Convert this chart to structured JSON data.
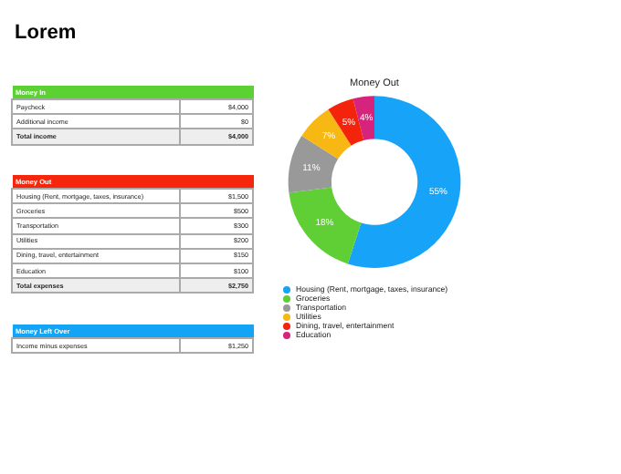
{
  "chart_data": [
    {
      "type": "other",
      "title": "Lorem"
    },
    {
      "type": "other",
      "title": "Money In",
      "colors": [
        "#5cd134"
      ],
      "annotations": [
        "Paycheck",
        "$4,000",
        "Additional income",
        "$0",
        "Total income",
        "$4,000"
      ]
    },
    {
      "type": "other",
      "title": "Money Out",
      "colors": [
        "#f5260c"
      ],
      "annotations": [
        "Housing (Rent, mortgage, taxes, insurance)",
        "$1,500",
        "Groceries",
        "$500",
        "Transportation",
        "$300",
        "Utilities",
        "$200",
        "Dining, travel, entertainment",
        "$150",
        "Education",
        "$100",
        "Total expenses",
        "$2,750"
      ]
    },
    {
      "type": "other",
      "title": "Money Left Over",
      "colors": [
        "#14a4f6"
      ],
      "annotations": [
        "Income minus expenses",
        "$1,250"
      ]
    },
    {
      "type": "donut",
      "title": "Money Out",
      "legend": "bottom",
      "categories": [
        "Housing (Rent, mortgage, taxes, insurance)",
        "Groceries",
        "Transportation",
        "Utilities",
        "Dining, travel, entertainment",
        "Education"
      ],
      "values": [
        55,
        18,
        11,
        7,
        5,
        4
      ],
      "value_labels": [
        "55%",
        "18%",
        "11%",
        "7%",
        "5%",
        "4%"
      ],
      "colors": [
        "#17a3f7",
        "#5fcf35",
        "#999999",
        "#f8b814",
        "#f4240c",
        "#d6237c"
      ]
    }
  ]
}
